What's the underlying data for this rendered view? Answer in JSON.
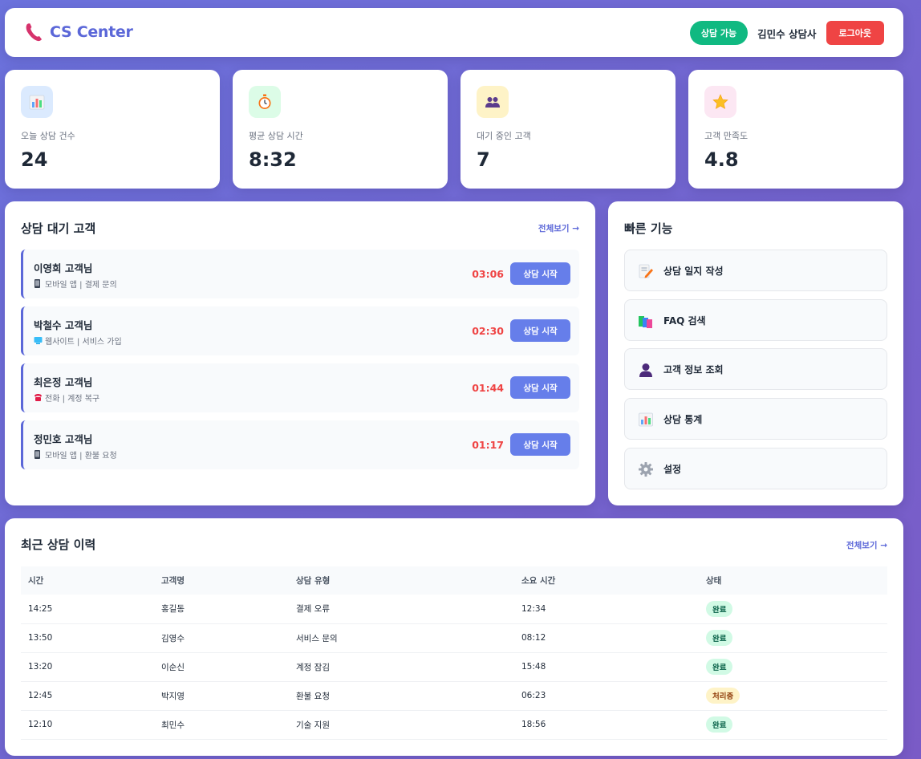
{
  "header": {
    "logo_text": "CS Center",
    "status": "상담 가능",
    "agent": "김민수 상담사",
    "logout": "로그아웃"
  },
  "stats": [
    {
      "label": "오늘 상담 건수",
      "value": "24",
      "icon": "bar-chart-icon",
      "bg": "#dbeafe"
    },
    {
      "label": "평균 상담 시간",
      "value": "8:32",
      "icon": "stopwatch-icon",
      "bg": "#dcfce7"
    },
    {
      "label": "대기 중인 고객",
      "value": "7",
      "icon": "users-icon",
      "bg": "#fef3c7"
    },
    {
      "label": "고객 만족도",
      "value": "4.8",
      "icon": "star-icon",
      "bg": "#fce7f3"
    }
  ],
  "waiting": {
    "title": "상담 대기 고객",
    "view_all": "전체보기 →",
    "start_label": "상담 시작",
    "items": [
      {
        "name": "이영희 고객님",
        "meta": "모바일 앱 | 결제 문의",
        "time": "03:06",
        "icon": "mobile-icon"
      },
      {
        "name": "박철수 고객님",
        "meta": "웹사이트 | 서비스 가입",
        "time": "02:30",
        "icon": "computer-icon"
      },
      {
        "name": "최은정 고객님",
        "meta": "전화 | 계정 복구",
        "time": "01:44",
        "icon": "telephone-icon"
      },
      {
        "name": "정민호 고객님",
        "meta": "모바일 앱 | 환불 요청",
        "time": "01:17",
        "icon": "mobile-icon"
      }
    ]
  },
  "quick": {
    "title": "빠른 기능",
    "items": [
      {
        "label": "상담 일지 작성",
        "icon": "memo-icon"
      },
      {
        "label": "FAQ 검색",
        "icon": "books-icon"
      },
      {
        "label": "고객 정보 조회",
        "icon": "user-icon"
      },
      {
        "label": "상담 통계",
        "icon": "bar-chart-icon"
      },
      {
        "label": "설정",
        "icon": "gear-icon"
      }
    ]
  },
  "history": {
    "title": "최근 상담 이력",
    "view_all": "전체보기 →",
    "columns": [
      "시간",
      "고객명",
      "상담 유형",
      "소요 시간",
      "상태"
    ],
    "rows": [
      {
        "time": "14:25",
        "name": "홍길동",
        "type": "결제 오류",
        "duration": "12:34",
        "status": "완료"
      },
      {
        "time": "13:50",
        "name": "김영수",
        "type": "서비스 문의",
        "duration": "08:12",
        "status": "완료"
      },
      {
        "time": "13:20",
        "name": "이순신",
        "type": "계정 잠김",
        "duration": "15:48",
        "status": "완료"
      },
      {
        "time": "12:45",
        "name": "박지영",
        "type": "환불 요청",
        "duration": "06:23",
        "status": "처리중"
      },
      {
        "time": "12:10",
        "name": "최민수",
        "type": "기술 지원",
        "duration": "18:56",
        "status": "완료"
      }
    ]
  },
  "colors": {
    "accent": "#5b67d8",
    "button": "#667eea",
    "online": "#10b981",
    "danger": "#ef4444"
  }
}
